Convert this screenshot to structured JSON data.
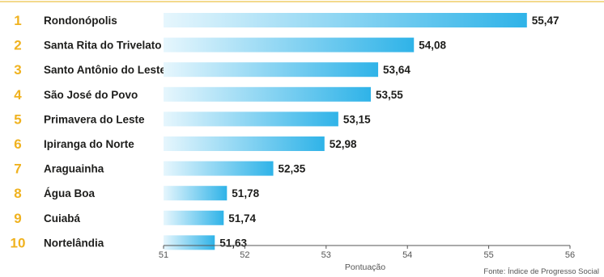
{
  "colors": {
    "accent_line": "#f3d98c",
    "rank": "#f0b21f",
    "text": "#1d1d1b",
    "axis": "#555555",
    "bar_dark": "#2fb3e8",
    "bar_light": "#e6f6fd"
  },
  "chart_data": {
    "type": "bar",
    "orientation": "horizontal",
    "ranks": [
      "1",
      "2",
      "3",
      "4",
      "5",
      "6",
      "7",
      "8",
      "9",
      "10"
    ],
    "categories": [
      "Rondonópolis",
      "Santa Rita do Trivelato",
      "Santo Antônio do Leste",
      "São José do Povo",
      "Primavera do Leste",
      "Ipiranga do Norte",
      "Araguainha",
      "Água Boa",
      "Cuiabá",
      "Nortelândia"
    ],
    "values": [
      55.47,
      54.08,
      53.64,
      53.55,
      53.15,
      52.98,
      52.35,
      51.78,
      51.74,
      51.63
    ],
    "value_labels": [
      "55,47",
      "54,08",
      "53,64",
      "53,55",
      "53,15",
      "52,98",
      "52,35",
      "51,78",
      "51,74",
      "51,63"
    ],
    "xlim": [
      51,
      56
    ],
    "xticks": [
      "51",
      "52",
      "53",
      "54",
      "55",
      "56"
    ],
    "xlabel": "Pontuação",
    "source": "Fonte: Índice de Progresso Social",
    "grid": false
  }
}
